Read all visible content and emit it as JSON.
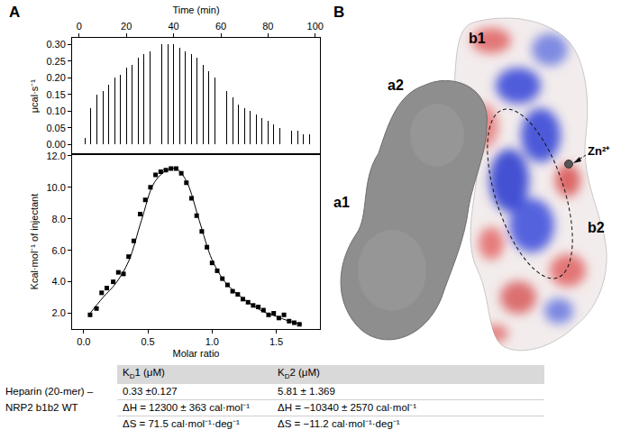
{
  "panel_labels": [
    "A",
    "B"
  ],
  "chart_data": [
    {
      "type": "bar",
      "xlabel": "Time (min)",
      "ylabel": "μcal·s⁻¹",
      "color": "#000000",
      "x": [
        2.5,
        5,
        7.5,
        10,
        12.5,
        15,
        17.5,
        20,
        22.5,
        25,
        27.5,
        30,
        32.5,
        35,
        37.5,
        40,
        42.5,
        45,
        47.5,
        50,
        52.5,
        55,
        57.5,
        60,
        62.5,
        65,
        67.5,
        70,
        72.5,
        75,
        77.5,
        80,
        82.5,
        85,
        87.5,
        90,
        92.5,
        95,
        97.5
      ],
      "values": [
        0.02,
        0.11,
        0.15,
        0.16,
        0.18,
        0.2,
        0.21,
        0.23,
        0.24,
        0.26,
        0.27,
        0.28,
        0.29,
        0.3,
        0.3,
        0.3,
        0.29,
        0.28,
        0.27,
        0.26,
        0.24,
        0.22,
        0.2,
        0.18,
        0.16,
        0.14,
        0.12,
        0.11,
        0.1,
        0.09,
        0.08,
        0.07,
        0.06,
        0.05,
        0.05,
        0.04,
        0.04,
        0.03,
        0.03
      ],
      "xlim": [
        -3,
        102
      ],
      "xticks": [
        0,
        20,
        40,
        60,
        80,
        100
      ],
      "ylim": [
        -0.03,
        0.32
      ],
      "yticks": [
        {
          "value": 0,
          "label": "0.00"
        },
        {
          "value": 0.05,
          "label": "0.05"
        },
        {
          "value": 0.1,
          "label": "0.10"
        },
        {
          "value": 0.15,
          "label": "0.15"
        },
        {
          "value": 0.2,
          "label": "0.20"
        },
        {
          "value": 0.25,
          "label": "0.25"
        },
        {
          "value": 0.3,
          "label": "0.30"
        }
      ]
    },
    {
      "type": "scatter",
      "xlabel": "Molar ratio",
      "ylabel": "Kcal·mol⁻¹ of injectant",
      "series": [
        {
          "type": "scatter",
          "marker": "square",
          "color": "#000000",
          "x": [
            0.05,
            0.1,
            0.14,
            0.18,
            0.23,
            0.27,
            0.31,
            0.35,
            0.39,
            0.44,
            0.48,
            0.52,
            0.56,
            0.6,
            0.64,
            0.68,
            0.72,
            0.76,
            0.8,
            0.84,
            0.88,
            0.92,
            0.96,
            1.0,
            1.04,
            1.08,
            1.12,
            1.16,
            1.2,
            1.24,
            1.28,
            1.32,
            1.36,
            1.4,
            1.44,
            1.48,
            1.52,
            1.56,
            1.6,
            1.64,
            1.68
          ],
          "values": [
            1.9,
            2.3,
            3.3,
            3.6,
            4.0,
            4.6,
            4.5,
            5.6,
            6.6,
            8.3,
            9.2,
            10.0,
            10.8,
            11.0,
            11.1,
            11.2,
            11.2,
            10.9,
            10.3,
            9.3,
            8.2,
            7.2,
            6.2,
            5.2,
            4.7,
            4.2,
            3.8,
            3.4,
            3.2,
            2.9,
            2.7,
            2.5,
            2.4,
            2.2,
            1.9,
            2.0,
            1.7,
            1.9,
            1.5,
            1.4,
            1.3
          ]
        },
        {
          "type": "line",
          "line_style": "solid",
          "color": "#000000",
          "x": [
            0.05,
            0.15,
            0.25,
            0.35,
            0.45,
            0.55,
            0.65,
            0.72,
            0.8,
            0.9,
            1.0,
            1.1,
            1.2,
            1.3,
            1.4,
            1.5,
            1.6,
            1.7
          ],
          "values": [
            2.0,
            3.0,
            3.9,
            5.3,
            7.9,
            10.3,
            11.1,
            11.2,
            10.4,
            7.9,
            5.4,
            4.0,
            3.2,
            2.6,
            2.1,
            1.8,
            1.5,
            1.3
          ]
        }
      ],
      "xlim": [
        -0.09,
        1.84
      ],
      "xticks": [
        {
          "value": 0,
          "label": "0.0"
        },
        {
          "value": 0.5,
          "label": "0.5"
        },
        {
          "value": 1,
          "label": "1.0"
        },
        {
          "value": 1.5,
          "label": "1.5"
        }
      ],
      "ylim": [
        1.0,
        12.1
      ],
      "yticks": [
        {
          "value": 2,
          "label": "2.0"
        },
        {
          "value": 4,
          "label": "4.0"
        },
        {
          "value": 6,
          "label": "6.0"
        },
        {
          "value": 8,
          "label": "8.0"
        },
        {
          "value": 10,
          "label": "10.0"
        },
        {
          "value": 12,
          "label": "12.0"
        }
      ]
    }
  ],
  "diagram": {
    "domain_labels": [
      "b1",
      "a2",
      "a1",
      "b2"
    ],
    "ion_label": "Zn²⁺"
  },
  "table": {
    "header": [
      {
        "text": "K",
        "subscript": "D",
        "suffix": "1 (μM)"
      },
      {
        "text": "K",
        "subscript": "D",
        "suffix": "2 (μM)"
      }
    ],
    "rows": [
      {
        "label": [
          "Heparin (20-mer) –",
          "NRP2 b1b2 WT"
        ],
        "cells": [
          [
            "0.33 ±0.127",
            "ΔH = 12300 ± 363 cal·mol⁻¹",
            "ΔS = 71.5 cal·mol⁻¹·deg⁻¹"
          ],
          [
            "5.81 ± 1.369",
            "ΔH = −10340 ± 2570 cal·mol⁻¹",
            "ΔS = −11.2 cal·mol⁻¹·deg⁻¹"
          ]
        ]
      }
    ]
  }
}
